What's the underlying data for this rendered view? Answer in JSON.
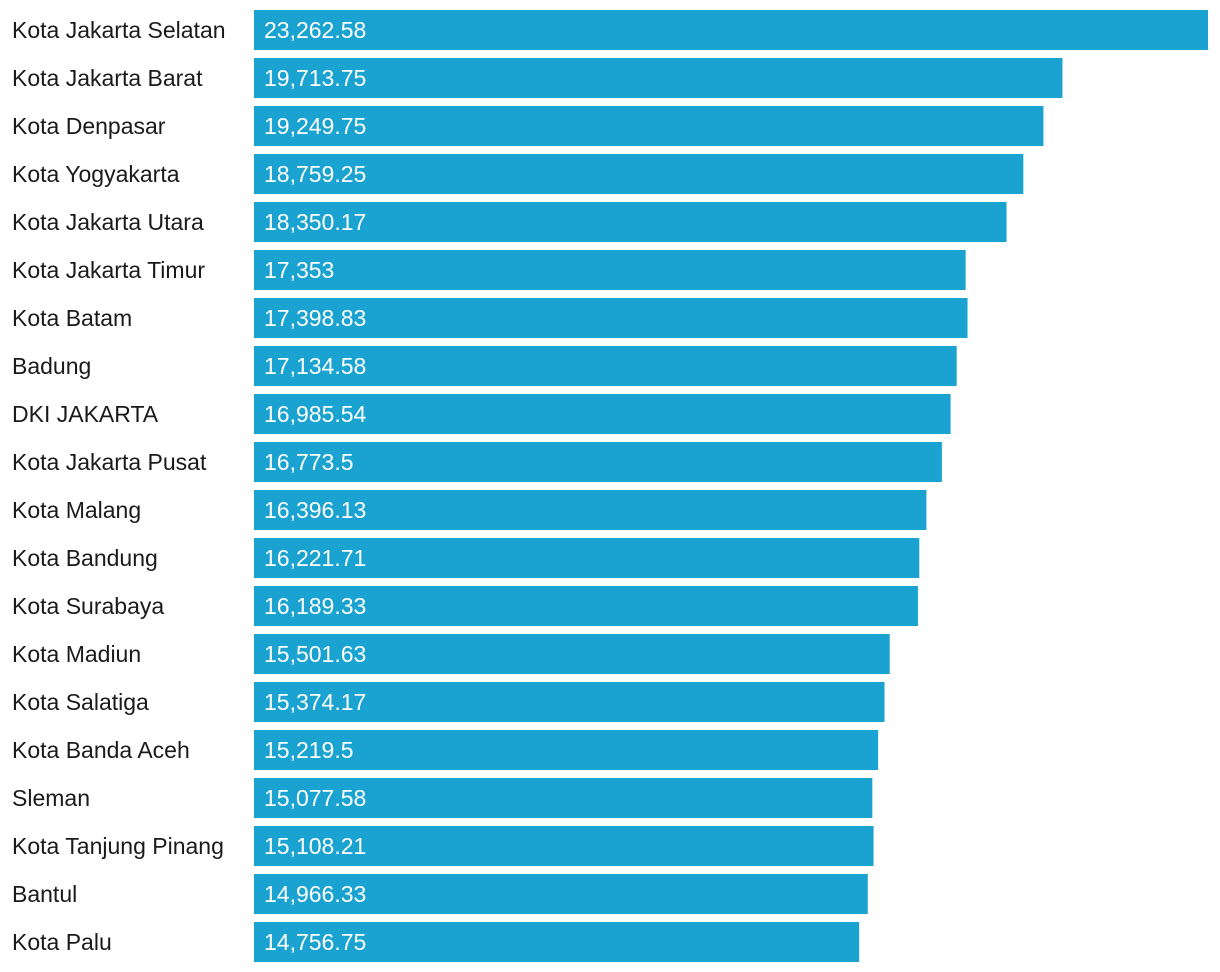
{
  "chart_data": {
    "type": "bar",
    "orientation": "horizontal",
    "title": "",
    "xlabel": "",
    "ylabel": "",
    "grid": false,
    "legend": "none",
    "bar_color": "#1aa3d0",
    "categories": [
      "Kota Jakarta Selatan",
      "Kota Jakarta Barat",
      "Kota Denpasar",
      "Kota Yogyakarta",
      "Kota Jakarta Utara",
      "Kota Jakarta Timur",
      "Kota Batam",
      "Badung",
      "DKI JAKARTA",
      "Kota Jakarta Pusat",
      "Kota Malang",
      "Kota Bandung",
      "Kota Surabaya",
      "Kota Madiun",
      "Kota Salatiga",
      "Kota Banda Aceh",
      "Sleman",
      "Kota Tanjung Pinang",
      "Bantul",
      "Kota Palu"
    ],
    "values": [
      23262.58,
      19713.75,
      19249.75,
      18759.25,
      18350.17,
      17353,
      17398.83,
      17134.58,
      16985.54,
      16773.5,
      16396.13,
      16221.71,
      16189.33,
      15501.63,
      15374.17,
      15219.5,
      15077.58,
      15108.21,
      14966.33,
      14756.75
    ],
    "value_labels": [
      "23,262.58",
      "19,713.75",
      "19,249.75",
      "18,759.25",
      "18,350.17",
      "17,353",
      "17,398.83",
      "17,134.58",
      "16,985.54",
      "16,773.5",
      "16,396.13",
      "16,221.71",
      "16,189.33",
      "15,501.63",
      "15,374.17",
      "15,219.5",
      "15,077.58",
      "15,108.21",
      "14,966.33",
      "14,756.75"
    ]
  }
}
